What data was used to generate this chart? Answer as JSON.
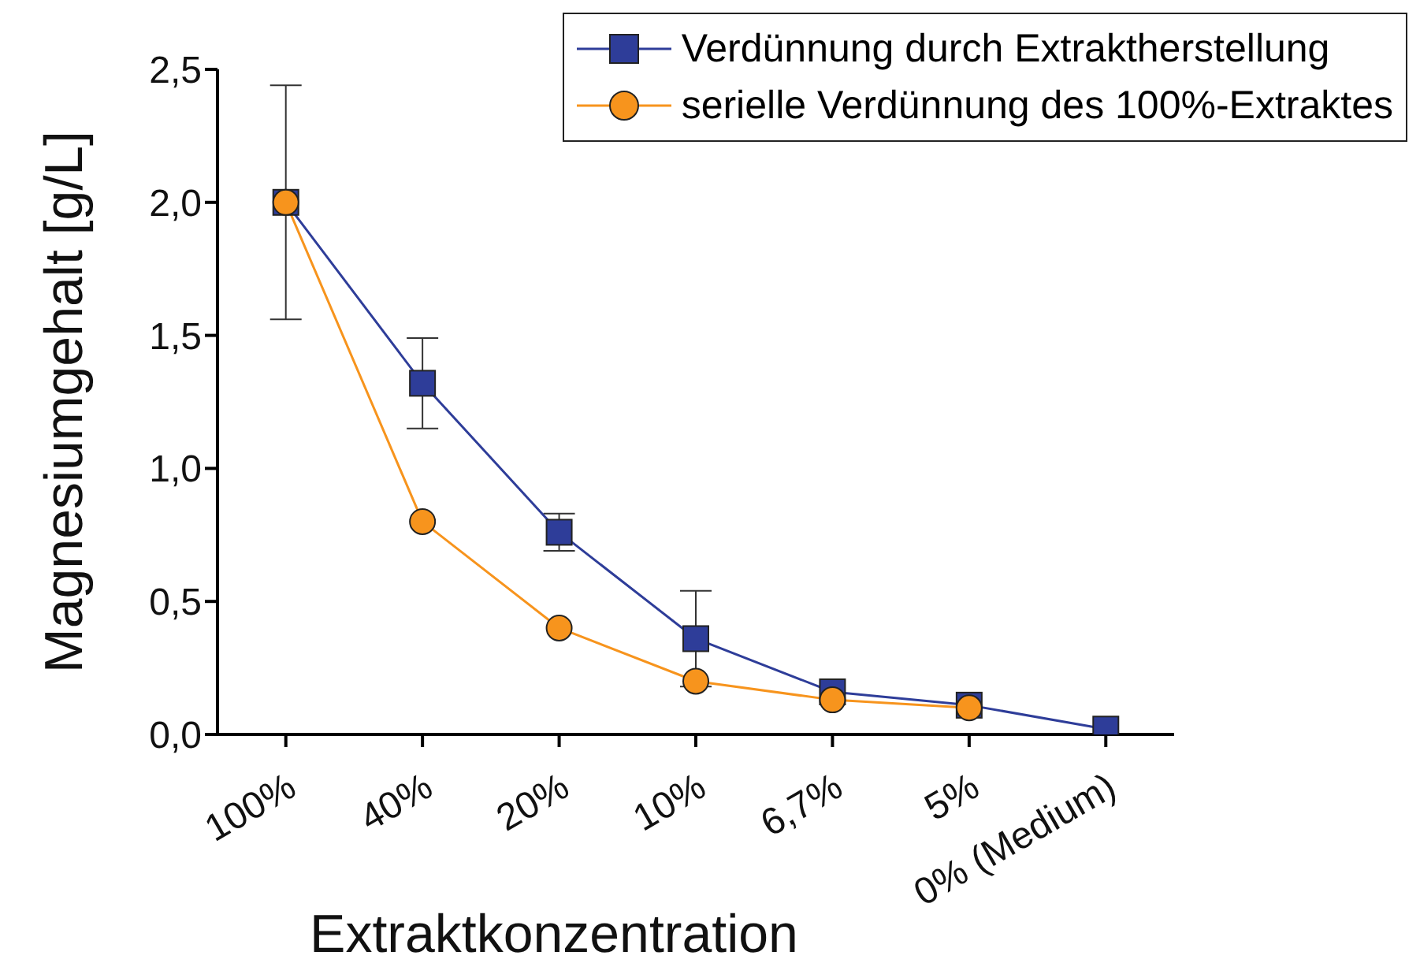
{
  "chart_data": {
    "type": "line",
    "xlabel": "Extraktkonzentration",
    "ylabel": "Magnesiumgehalt [g/L]",
    "categories": [
      "100%",
      "40%",
      "20%",
      "10%",
      "6,7%",
      "5%",
      "0% (Medium)"
    ],
    "series": [
      {
        "name": "Verdünnung durch Extraktherstellung",
        "color": "#2e3d99",
        "marker": "square",
        "values": [
          2.0,
          1.32,
          0.76,
          0.36,
          0.16,
          0.11,
          0.02
        ],
        "errors": [
          0.44,
          0.17,
          0.07,
          0.18,
          null,
          null,
          null
        ]
      },
      {
        "name": "serielle Verdünnung des 100%-Extraktes",
        "color": "#f7941d",
        "marker": "circle",
        "values": [
          2.0,
          0.8,
          0.4,
          0.2,
          0.13,
          0.1,
          null
        ]
      }
    ],
    "ylim": [
      0,
      2.5
    ],
    "yticks": [
      {
        "value": 0,
        "label": "0,0"
      },
      {
        "value": 0.5,
        "label": "0,5"
      },
      {
        "value": 1,
        "label": "1,0"
      },
      {
        "value": 1.5,
        "label": "1,5"
      },
      {
        "value": 2,
        "label": "2,0"
      },
      {
        "value": 2.5,
        "label": "2,5"
      }
    ],
    "grid": false,
    "legend": "top right",
    "line_style": "solid"
  }
}
